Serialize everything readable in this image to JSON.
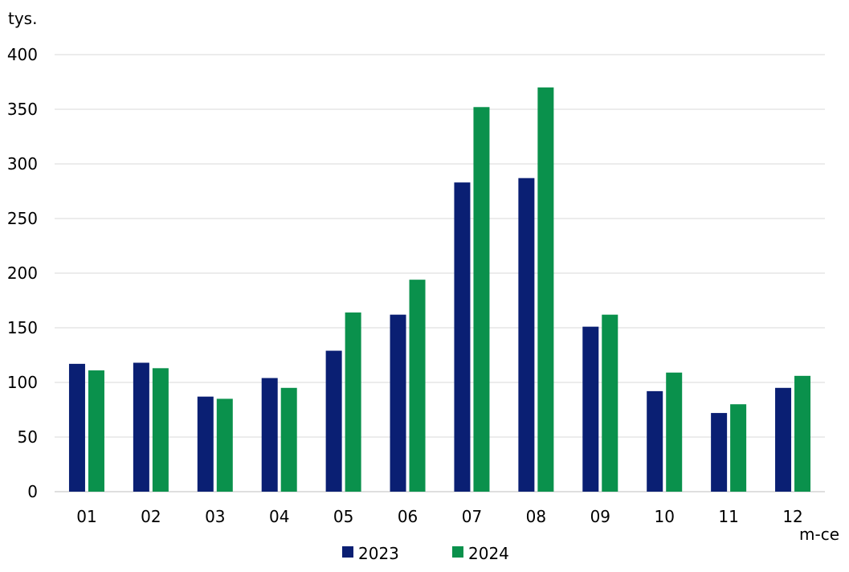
{
  "chart_data": {
    "type": "bar",
    "title": "",
    "ylabel": "tys.",
    "xlabel": "m-ce",
    "categories": [
      "01",
      "02",
      "03",
      "04",
      "05",
      "06",
      "07",
      "08",
      "09",
      "10",
      "11",
      "12"
    ],
    "series": [
      {
        "name": "2023",
        "color": "#0a1f73",
        "values": [
          117,
          118,
          87,
          104,
          129,
          162,
          283,
          287,
          151,
          92,
          72,
          95
        ]
      },
      {
        "name": "2024",
        "color": "#0a914c",
        "values": [
          111,
          113,
          85,
          95,
          164,
          194,
          352,
          370,
          162,
          109,
          80,
          106
        ]
      }
    ],
    "ylim": [
      0,
      400
    ],
    "yticks": [
      0,
      50,
      100,
      150,
      200,
      250,
      300,
      350,
      400
    ],
    "grid": true,
    "gridColor": "#d9d9d9",
    "axisColor": "#bfbfbf",
    "legend_position": "bottom"
  }
}
